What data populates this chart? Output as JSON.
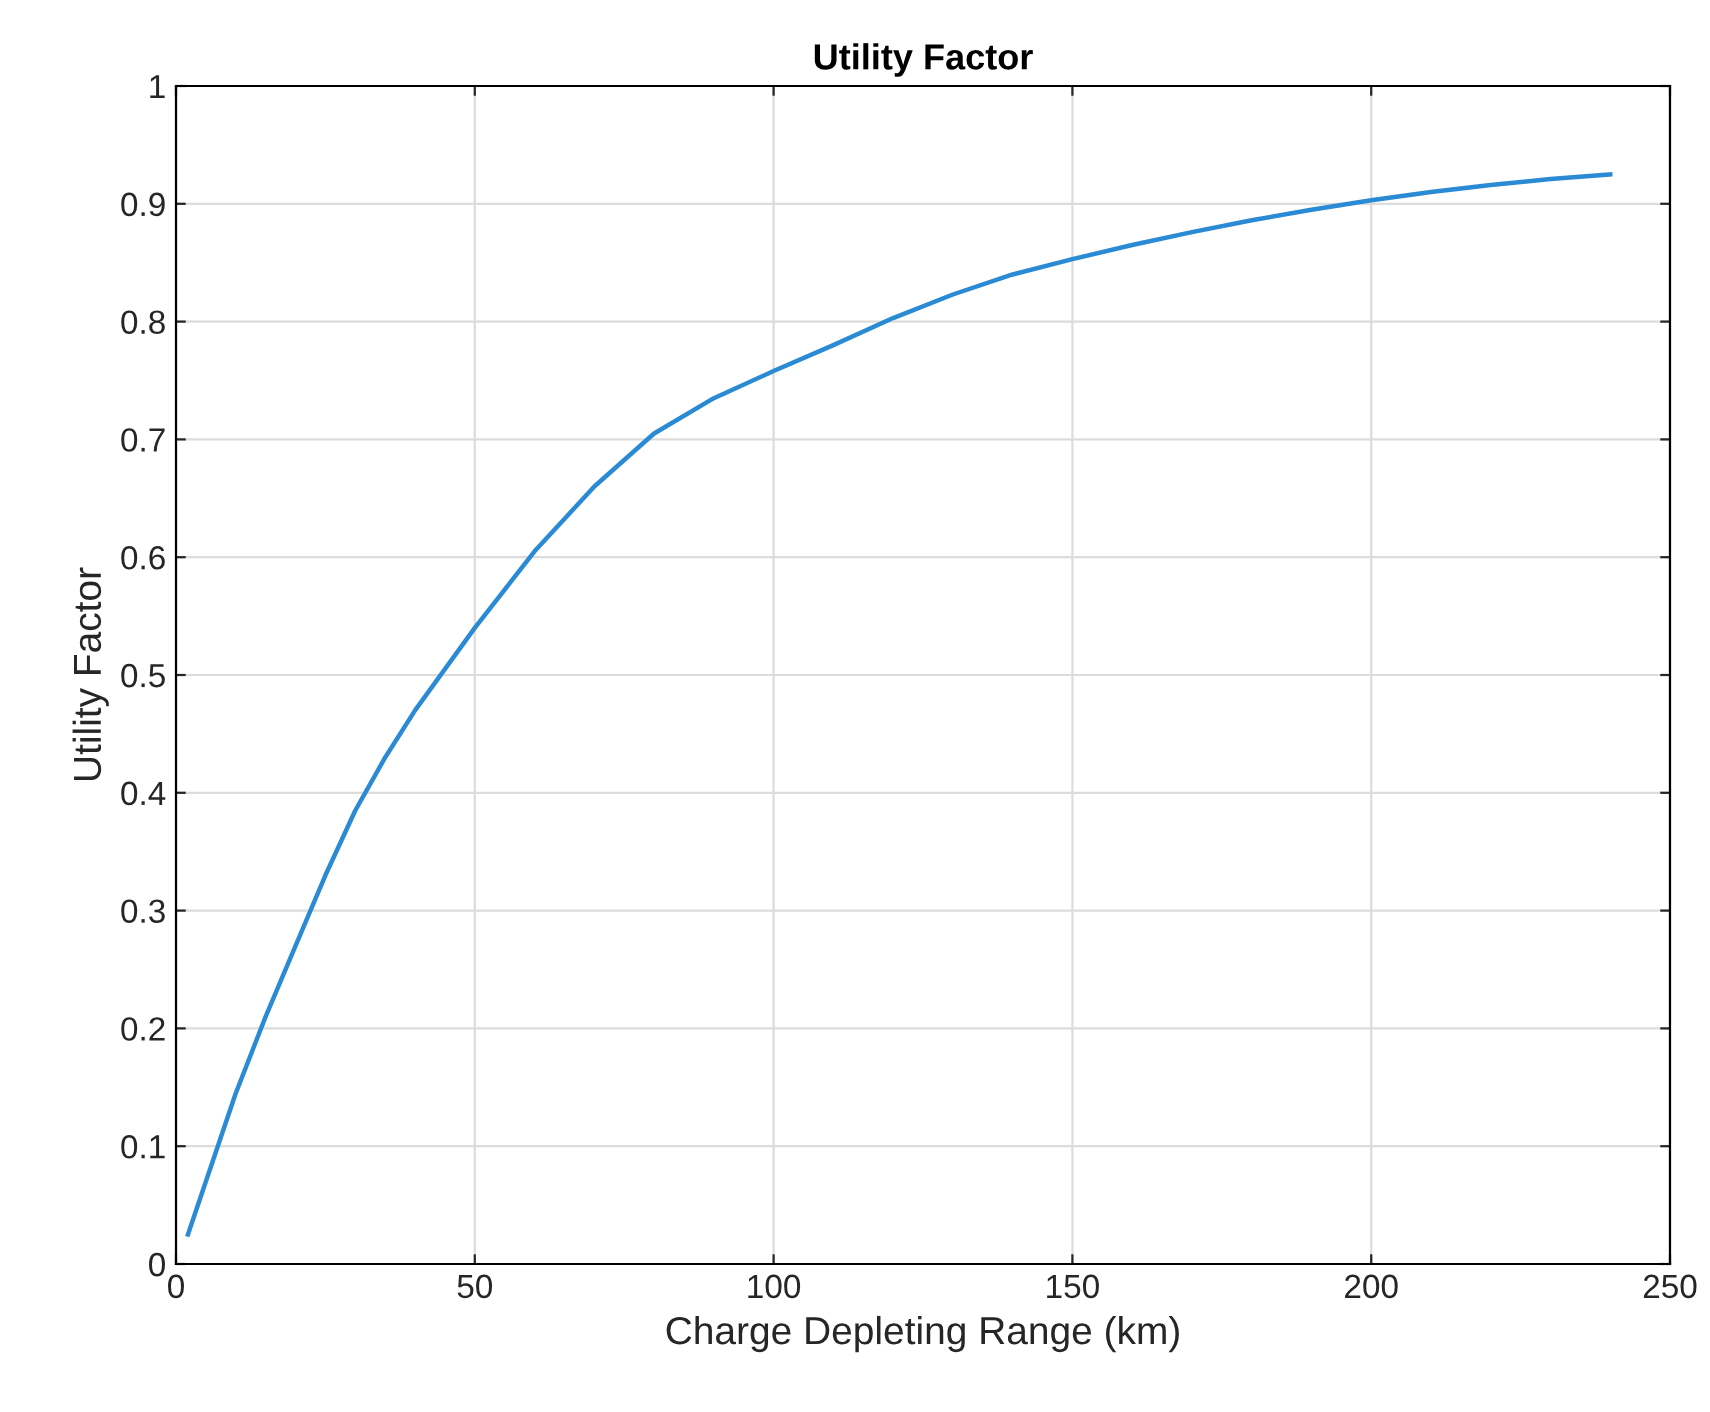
{
  "chart_data": {
    "type": "line",
    "title": "Utility Factor",
    "xlabel": "Charge Depleting Range (km)",
    "ylabel": "Utility Factor",
    "x": [
      2,
      5,
      8,
      10,
      15,
      20,
      25,
      30,
      35,
      40,
      45,
      50,
      60,
      70,
      80,
      90,
      100,
      110,
      120,
      130,
      140,
      150,
      160,
      170,
      180,
      190,
      200,
      210,
      220,
      230,
      240
    ],
    "series": [
      {
        "color": "#2a8ad4",
        "values": [
          0.025,
          0.07,
          0.115,
          0.145,
          0.21,
          0.27,
          0.33,
          0.385,
          0.43,
          0.47,
          0.505,
          0.54,
          0.605,
          0.66,
          0.705,
          0.735,
          0.758,
          0.78,
          0.803,
          0.823,
          0.84,
          0.853,
          0.865,
          0.876,
          0.886,
          0.895,
          0.903,
          0.91,
          0.916,
          0.921,
          0.925
        ]
      }
    ],
    "xlim": [
      0,
      250
    ],
    "xticks": [
      0,
      50,
      100,
      150,
      200,
      250
    ],
    "ylim": [
      0,
      1
    ],
    "yticks": [
      0,
      0.1,
      0.2,
      0.3,
      0.4,
      0.5,
      0.6,
      0.7,
      0.8,
      0.9,
      1
    ],
    "grid": true,
    "legend": false,
    "marker": "none",
    "line_style": "solid"
  }
}
